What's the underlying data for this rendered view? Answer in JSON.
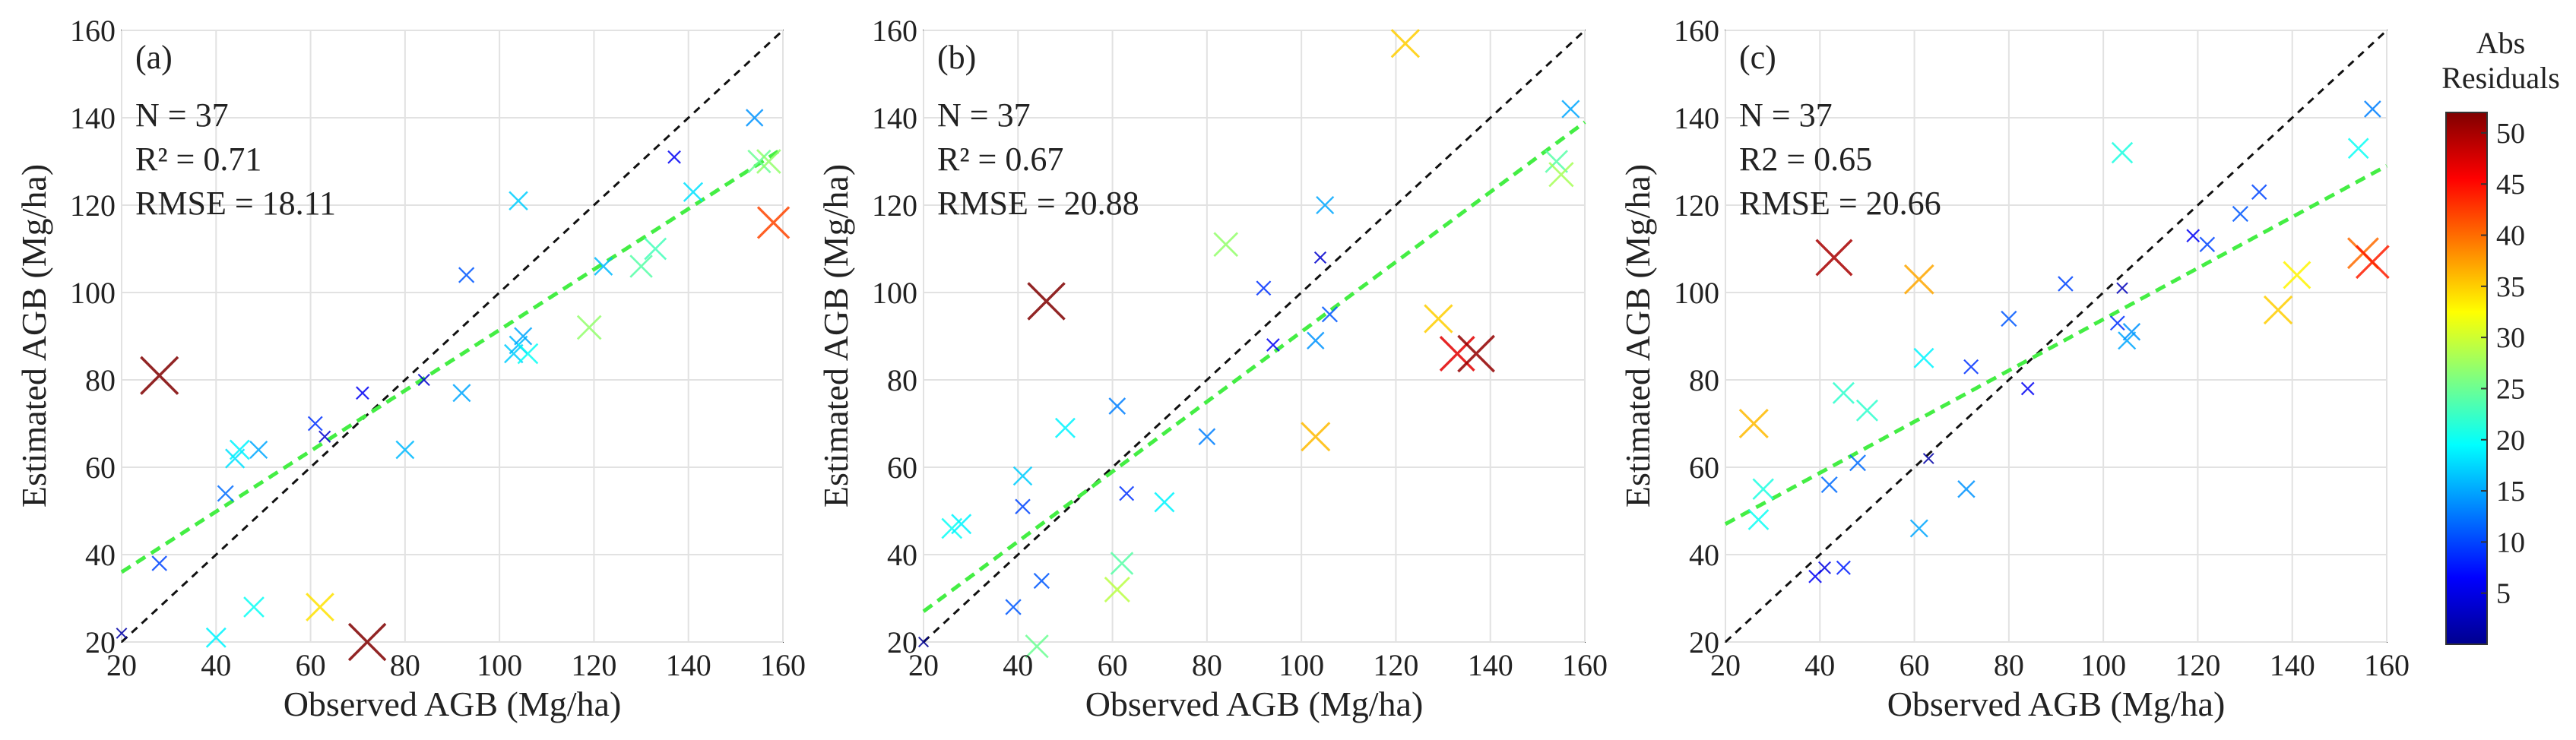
{
  "chart_data": [
    {
      "type": "scatter",
      "panel_label": "(a)",
      "xlabel": "Observed AGB (Mg/ha)",
      "ylabel": "Estimated AGB (Mg/ha)",
      "xlim": [
        20,
        160
      ],
      "ylim": [
        20,
        160
      ],
      "xticks": [
        20,
        40,
        60,
        80,
        100,
        120,
        140,
        160
      ],
      "yticks": [
        20,
        40,
        60,
        80,
        100,
        120,
        140,
        160
      ],
      "grid": true,
      "stats": [
        "N = 37",
        "R² = 0.71",
        "RMSE = 18.11"
      ],
      "one_to_one_line": [
        [
          20,
          20
        ],
        [
          160,
          160
        ]
      ],
      "fit_line": [
        [
          20,
          36
        ],
        [
          160,
          133
        ]
      ],
      "points": [
        {
          "x": 20,
          "y": 22,
          "res": 2
        },
        {
          "x": 28,
          "y": 81,
          "res": 53
        },
        {
          "x": 28,
          "y": 38,
          "res": 10
        },
        {
          "x": 40,
          "y": 21,
          "res": 19
        },
        {
          "x": 42,
          "y": 54,
          "res": 12
        },
        {
          "x": 44,
          "y": 62,
          "res": 18
        },
        {
          "x": 45,
          "y": 64,
          "res": 19
        },
        {
          "x": 48,
          "y": 28,
          "res": 20
        },
        {
          "x": 49,
          "y": 64,
          "res": 15
        },
        {
          "x": 61,
          "y": 70,
          "res": 9
        },
        {
          "x": 62,
          "y": 28,
          "res": 34
        },
        {
          "x": 63,
          "y": 67,
          "res": 4
        },
        {
          "x": 71,
          "y": 77,
          "res": 6
        },
        {
          "x": 72,
          "y": 20,
          "res": 52
        },
        {
          "x": 80,
          "y": 64,
          "res": 16
        },
        {
          "x": 84,
          "y": 80,
          "res": 4
        },
        {
          "x": 92,
          "y": 77,
          "res": 15
        },
        {
          "x": 93,
          "y": 104,
          "res": 11
        },
        {
          "x": 103,
          "y": 86,
          "res": 17
        },
        {
          "x": 104,
          "y": 88,
          "res": 16
        },
        {
          "x": 104,
          "y": 121,
          "res": 17
        },
        {
          "x": 105,
          "y": 90,
          "res": 15
        },
        {
          "x": 106,
          "y": 86,
          "res": 20
        },
        {
          "x": 119,
          "y": 92,
          "res": 27
        },
        {
          "x": 122,
          "y": 106,
          "res": 16
        },
        {
          "x": 130,
          "y": 106,
          "res": 24
        },
        {
          "x": 133,
          "y": 110,
          "res": 23
        },
        {
          "x": 137,
          "y": 131,
          "res": 6
        },
        {
          "x": 141,
          "y": 123,
          "res": 18
        },
        {
          "x": 154,
          "y": 140,
          "res": 14
        },
        {
          "x": 155,
          "y": 130,
          "res": 25
        },
        {
          "x": 157,
          "y": 130,
          "res": 27
        },
        {
          "x": 158,
          "y": 116,
          "res": 42
        }
      ]
    },
    {
      "type": "scatter",
      "panel_label": "(b)",
      "xlabel": "Observed AGB (Mg/ha)",
      "ylabel": "Estimated AGB (Mg/ha)",
      "xlim": [
        20,
        160
      ],
      "ylim": [
        20,
        160
      ],
      "xticks": [
        20,
        40,
        60,
        80,
        100,
        120,
        140,
        160
      ],
      "yticks": [
        20,
        40,
        60,
        80,
        100,
        120,
        140,
        160
      ],
      "grid": true,
      "stats": [
        "N = 37",
        "R² = 0.67",
        "RMSE = 20.88"
      ],
      "one_to_one_line": [
        [
          20,
          20
        ],
        [
          160,
          160
        ]
      ],
      "fit_line": [
        [
          20,
          27
        ],
        [
          160,
          139
        ]
      ],
      "points": [
        {
          "x": 20,
          "y": 20,
          "res": 1
        },
        {
          "x": 26,
          "y": 46,
          "res": 20
        },
        {
          "x": 28,
          "y": 47,
          "res": 19
        },
        {
          "x": 39,
          "y": 28,
          "res": 11
        },
        {
          "x": 41,
          "y": 58,
          "res": 17
        },
        {
          "x": 41,
          "y": 51,
          "res": 10
        },
        {
          "x": 44,
          "y": 19,
          "res": 25
        },
        {
          "x": 45,
          "y": 34,
          "res": 11
        },
        {
          "x": 46,
          "y": 98,
          "res": 52
        },
        {
          "x": 50,
          "y": 69,
          "res": 19
        },
        {
          "x": 61,
          "y": 74,
          "res": 13
        },
        {
          "x": 61,
          "y": 32,
          "res": 29
        },
        {
          "x": 62,
          "y": 38,
          "res": 24
        },
        {
          "x": 63,
          "y": 54,
          "res": 9
        },
        {
          "x": 71,
          "y": 52,
          "res": 19
        },
        {
          "x": 80,
          "y": 67,
          "res": 13
        },
        {
          "x": 84,
          "y": 111,
          "res": 27
        },
        {
          "x": 92,
          "y": 101,
          "res": 9
        },
        {
          "x": 94,
          "y": 88,
          "res": 6
        },
        {
          "x": 103,
          "y": 67,
          "res": 36
        },
        {
          "x": 103,
          "y": 89,
          "res": 14
        },
        {
          "x": 104,
          "y": 108,
          "res": 4
        },
        {
          "x": 105,
          "y": 120,
          "res": 15
        },
        {
          "x": 106,
          "y": 95,
          "res": 11
        },
        {
          "x": 122,
          "y": 157,
          "res": 35
        },
        {
          "x": 129,
          "y": 94,
          "res": 35
        },
        {
          "x": 133,
          "y": 86,
          "res": 47
        },
        {
          "x": 137,
          "y": 86,
          "res": 51
        },
        {
          "x": 154,
          "y": 130,
          "res": 24
        },
        {
          "x": 155,
          "y": 127,
          "res": 28
        },
        {
          "x": 157,
          "y": 142,
          "res": 15
        }
      ]
    },
    {
      "type": "scatter",
      "panel_label": "(c)",
      "xlabel": "Observed AGB (Mg/ha)",
      "ylabel": "Estimated AGB (Mg/ha)",
      "xlim": [
        20,
        160
      ],
      "ylim": [
        20,
        160
      ],
      "xticks": [
        20,
        40,
        60,
        80,
        100,
        120,
        140,
        160
      ],
      "yticks": [
        20,
        40,
        60,
        80,
        100,
        120,
        140,
        160
      ],
      "grid": true,
      "stats": [
        "N = 37",
        "R2 = 0.65",
        "RMSE = 20.66"
      ],
      "one_to_one_line": [
        [
          20,
          20
        ],
        [
          160,
          160
        ]
      ],
      "fit_line": [
        [
          20,
          47
        ],
        [
          160,
          129
        ]
      ],
      "points": [
        {
          "x": 26,
          "y": 70,
          "res": 36
        },
        {
          "x": 27,
          "y": 48,
          "res": 20
        },
        {
          "x": 28,
          "y": 55,
          "res": 21
        },
        {
          "x": 39,
          "y": 35,
          "res": 6
        },
        {
          "x": 41,
          "y": 37,
          "res": 5
        },
        {
          "x": 42,
          "y": 56,
          "res": 12
        },
        {
          "x": 43,
          "y": 108,
          "res": 50
        },
        {
          "x": 45,
          "y": 77,
          "res": 22
        },
        {
          "x": 45,
          "y": 37,
          "res": 8
        },
        {
          "x": 48,
          "y": 61,
          "res": 12
        },
        {
          "x": 50,
          "y": 73,
          "res": 22
        },
        {
          "x": 61,
          "y": 103,
          "res": 37
        },
        {
          "x": 61,
          "y": 46,
          "res": 15
        },
        {
          "x": 62,
          "y": 85,
          "res": 19
        },
        {
          "x": 63,
          "y": 62,
          "res": 2
        },
        {
          "x": 71,
          "y": 55,
          "res": 14
        },
        {
          "x": 72,
          "y": 83,
          "res": 9
        },
        {
          "x": 80,
          "y": 94,
          "res": 11
        },
        {
          "x": 84,
          "y": 78,
          "res": 6
        },
        {
          "x": 92,
          "y": 102,
          "res": 10
        },
        {
          "x": 103,
          "y": 93,
          "res": 9
        },
        {
          "x": 104,
          "y": 101,
          "res": 3
        },
        {
          "x": 104,
          "y": 132,
          "res": 21
        },
        {
          "x": 105,
          "y": 89,
          "res": 15
        },
        {
          "x": 106,
          "y": 91,
          "res": 14
        },
        {
          "x": 119,
          "y": 113,
          "res": 6
        },
        {
          "x": 122,
          "y": 111,
          "res": 10
        },
        {
          "x": 129,
          "y": 118,
          "res": 11
        },
        {
          "x": 133,
          "y": 123,
          "res": 10
        },
        {
          "x": 137,
          "y": 96,
          "res": 35
        },
        {
          "x": 141,
          "y": 104,
          "res": 33
        },
        {
          "x": 154,
          "y": 133,
          "res": 20
        },
        {
          "x": 155,
          "y": 109,
          "res": 40
        },
        {
          "x": 157,
          "y": 107,
          "res": 44
        },
        {
          "x": 157,
          "y": 142,
          "res": 13
        }
      ]
    }
  ],
  "colorbar": {
    "title_line1": "Abs",
    "title_line2": "Residuals",
    "range": [
      0,
      52
    ],
    "ticks": [
      5,
      10,
      15,
      20,
      25,
      30,
      35,
      40,
      45,
      50
    ]
  },
  "colors": {
    "one_to_one_line": "#111111",
    "fit_line": "#44ee44",
    "grid": "#e2e2e2",
    "axes": "#333333"
  }
}
